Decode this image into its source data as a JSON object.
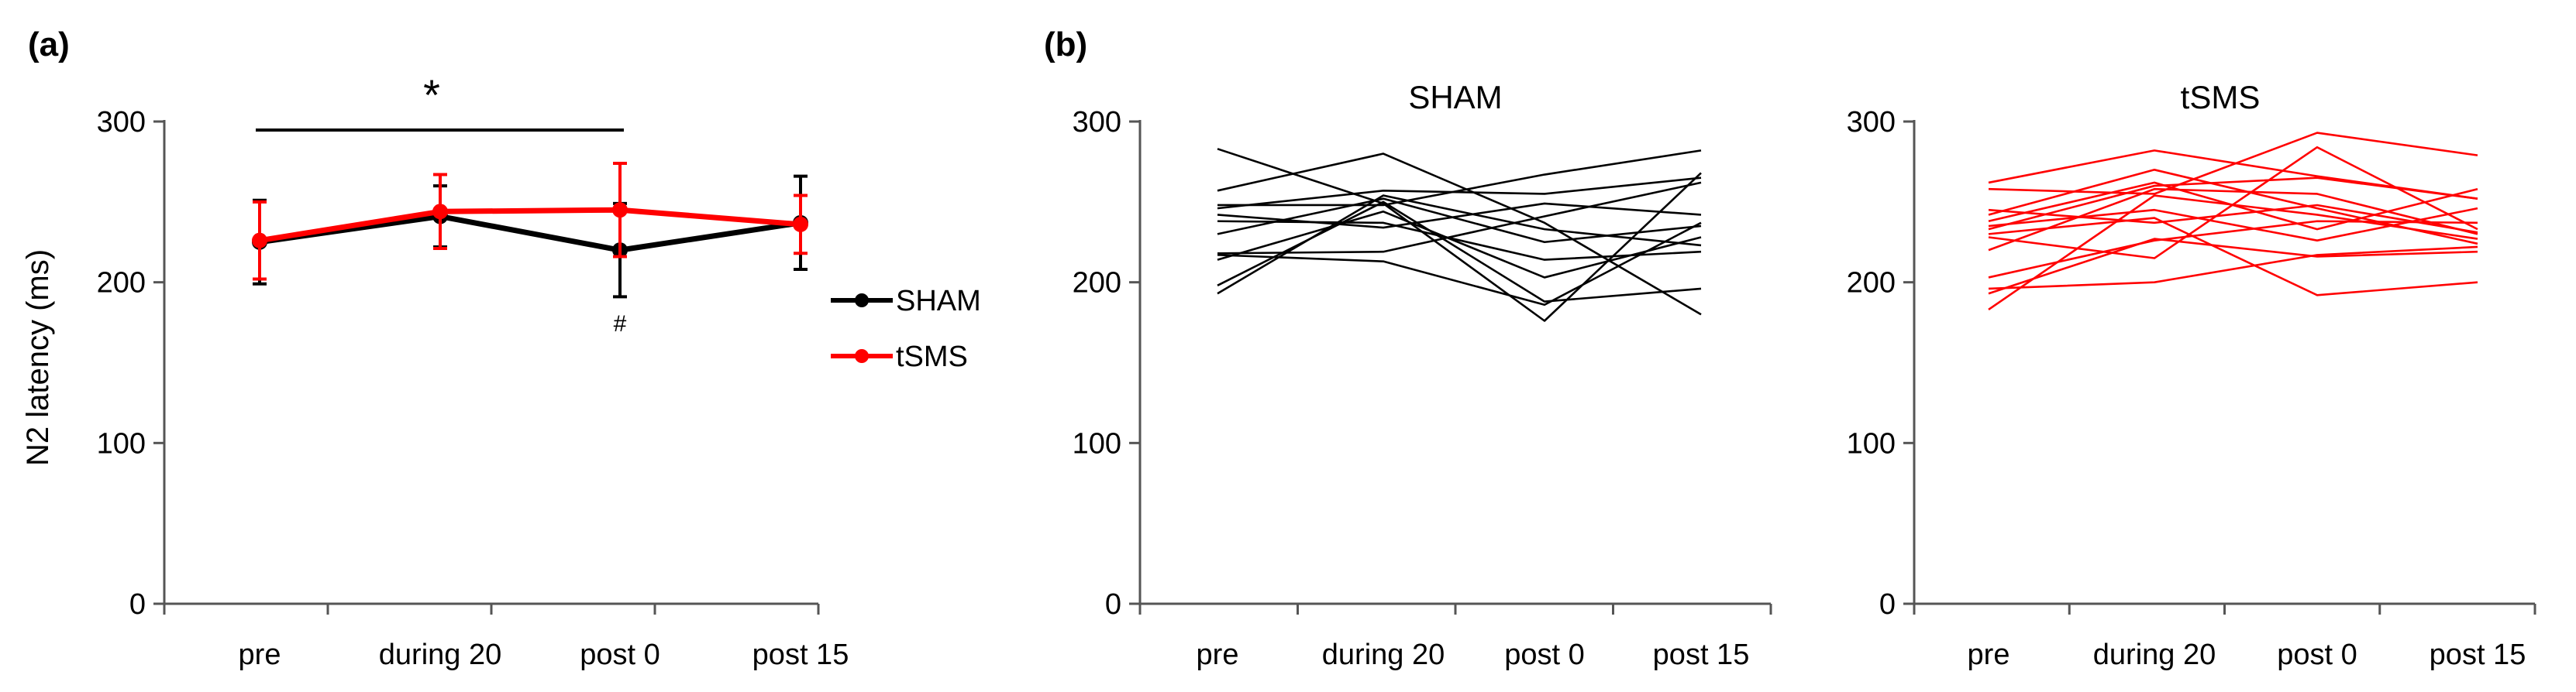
{
  "figure": {
    "panel_a_label": "(a)",
    "panel_b_label": "(b)"
  },
  "chart_data": [
    {
      "type": "line",
      "panel": "(a)",
      "title": "",
      "xlabel": "",
      "ylabel": "N2 latency (ms)",
      "ylim": [
        0,
        300
      ],
      "yticks": [
        "0",
        "100",
        "200",
        "300"
      ],
      "categories": [
        "pre",
        "during 20",
        "post 0",
        "post 15"
      ],
      "legend": [
        "SHAM",
        "tSMS"
      ],
      "legend_position": "right",
      "series": [
        {
          "name": "SHAM",
          "color": "#000000",
          "values": [
            225,
            241,
            220,
            237
          ],
          "err": [
            26,
            19,
            29,
            29
          ]
        },
        {
          "name": "tSMS",
          "color": "#ff0000",
          "values": [
            226,
            244,
            245,
            236
          ],
          "err": [
            24,
            23,
            29,
            18
          ]
        }
      ],
      "annotations": {
        "significance_bar": "*",
        "significance_span": [
          "pre",
          "post 0"
        ],
        "hash_mark": "#",
        "hash_at": "post 0"
      }
    },
    {
      "type": "line",
      "panel": "(b)",
      "title": "SHAM",
      "ylim": [
        0,
        300
      ],
      "yticks": [
        "0",
        "100",
        "200",
        "300"
      ],
      "categories": [
        "pre",
        "during 20",
        "post 0",
        "post 15"
      ],
      "color": "#000000",
      "series": [
        [
          283,
          249,
          176,
          268
        ],
        [
          257,
          280,
          237,
          180
        ],
        [
          248,
          248,
          267,
          282
        ],
        [
          246,
          257,
          255,
          265
        ],
        [
          242,
          234,
          249,
          242
        ],
        [
          238,
          237,
          214,
          219
        ],
        [
          230,
          252,
          225,
          235
        ],
        [
          218,
          219,
          241,
          262
        ],
        [
          217,
          213,
          186,
          237
        ],
        [
          214,
          244,
          203,
          228
        ],
        [
          198,
          250,
          188,
          196
        ],
        [
          193,
          254,
          233,
          223
        ]
      ]
    },
    {
      "type": "line",
      "panel": "(b)",
      "title": "tSMS",
      "ylim": [
        0,
        300
      ],
      "yticks": [
        "0",
        "100",
        "200",
        "300"
      ],
      "categories": [
        "pre",
        "during 20",
        "post 0",
        "post 15"
      ],
      "color": "#ff0000",
      "series": [
        [
          262,
          282,
          266,
          252
        ],
        [
          258,
          255,
          293,
          279
        ],
        [
          245,
          237,
          248,
          231
        ],
        [
          242,
          270,
          246,
          224
        ],
        [
          238,
          262,
          233,
          258
        ],
        [
          235,
          245,
          226,
          246
        ],
        [
          233,
          260,
          265,
          252
        ],
        [
          230,
          240,
          192,
          200
        ],
        [
          228,
          215,
          284,
          233
        ],
        [
          220,
          258,
          255,
          230
        ],
        [
          203,
          226,
          238,
          237
        ],
        [
          196,
          200,
          217,
          222
        ],
        [
          193,
          227,
          216,
          219
        ],
        [
          183,
          254,
          242,
          227
        ]
      ]
    }
  ]
}
